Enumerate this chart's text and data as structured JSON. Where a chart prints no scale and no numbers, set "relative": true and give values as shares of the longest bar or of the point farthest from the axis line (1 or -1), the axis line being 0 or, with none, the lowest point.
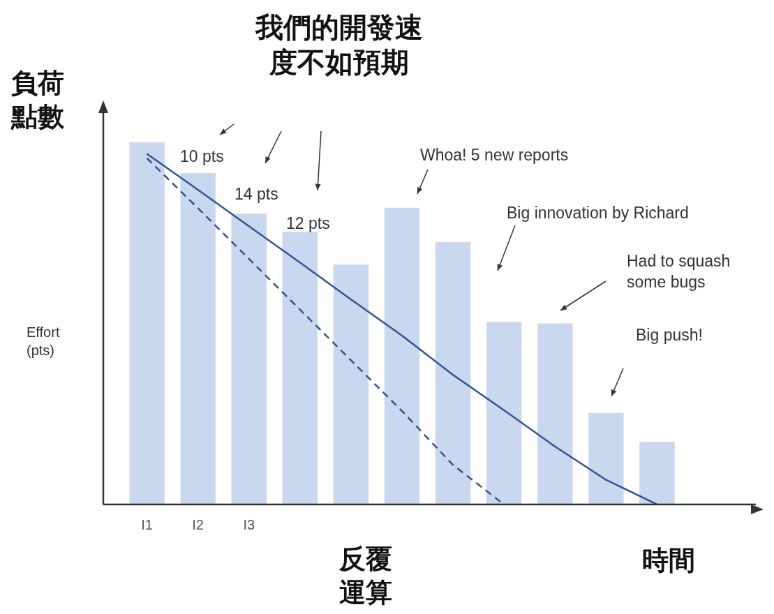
{
  "chart_data": {
    "type": "bar",
    "title": "我們的開發速度不如預期",
    "xlabel": "反覆運算",
    "ylabel": "Effort (pts)",
    "relative": true,
    "marker": "none",
    "grid": false,
    "legend": false,
    "categories": [
      "I1",
      "I2",
      "I3",
      null,
      null,
      null,
      null,
      null,
      null,
      null,
      null
    ],
    "series": [
      {
        "color": "#c9d8ee",
        "values": [
          1,
          0.915,
          0.803,
          0.753,
          0.662,
          0.819,
          0.725,
          0.504,
          0.5,
          0.253,
          0.173
        ]
      },
      {
        "type": "line",
        "color": "#2f5597",
        "line_style": "solid",
        "values": [
          0.968,
          0.869,
          0.768,
          0.668,
          0.566,
          0.466,
          0.358,
          0.26,
          0.16,
          0.068,
          0
        ]
      },
      {
        "type": "line",
        "color": "#2f5597",
        "line_style": "dashed",
        "values": [
          0.956,
          0.818,
          0.678,
          0.538,
          0.398,
          0.258,
          0.109,
          0,
          null,
          null,
          null
        ]
      }
    ],
    "annotations": [
      "負荷點數",
      "時間",
      "10 pts",
      "14 pts",
      "12 pts",
      "Whoa! 5 new reports",
      "Big innovation by Richard",
      "Had to squash some bugs",
      "Big push!"
    ]
  }
}
